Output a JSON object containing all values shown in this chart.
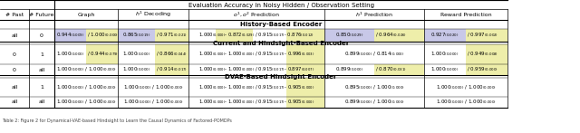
{
  "title": "Evaluation Accuracy in Noisy Hidden / Observation Setting",
  "col_headers": [
    "# Past",
    "# Future",
    "Graph",
    "h¹ Decoding",
    "o¹, o² Prediction",
    "h¹ Prediction",
    "Reward Prediction"
  ],
  "highlight_purple": "#c8c8e8",
  "highlight_yellow": "#eeeeaa",
  "bg_color": "#ffffff",
  "text_color": "#000000"
}
